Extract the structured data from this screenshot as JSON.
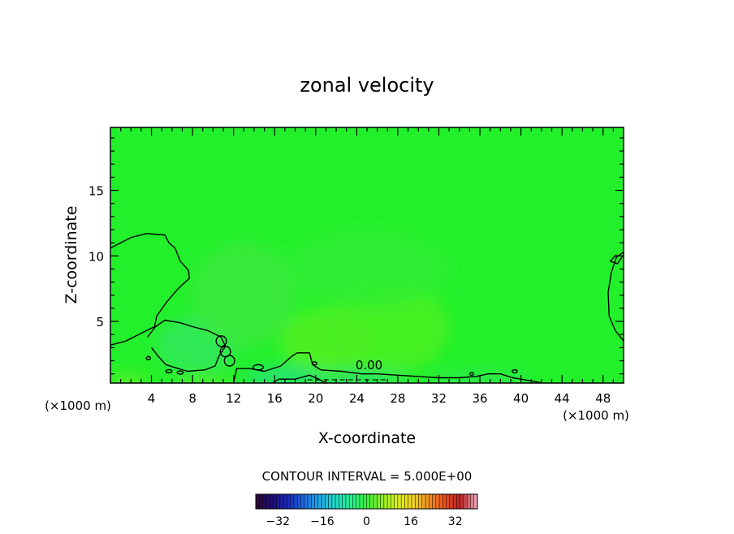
{
  "chart_data": {
    "type": "heatmap",
    "title": "zonal velocity",
    "xlabel": "X-coordinate",
    "ylabel": "Z-coordinate",
    "x_unit_label": "(×1000 m)",
    "x_ticks": [
      4,
      8,
      12,
      16,
      20,
      24,
      28,
      32,
      36,
      40,
      44,
      48
    ],
    "y_ticks": [
      5,
      10,
      15
    ],
    "xlim": [
      0,
      50
    ],
    "ylim": [
      0.3,
      19.8
    ],
    "contour_interval_text": "CONTOUR INTERVAL = 5.000E+00",
    "contour_label": "0.00",
    "colorbar": {
      "range": [
        -40,
        40
      ],
      "ticks": [
        -32,
        -16,
        0,
        16,
        32
      ],
      "tick_labels": [
        "−32",
        "−16",
        "0",
        "16",
        "32"
      ],
      "colors": [
        "#2a0a3a",
        "#1f0f78",
        "#1a2cc0",
        "#1e6be0",
        "#20a8e8",
        "#22d8c8",
        "#28f090",
        "#3af040",
        "#8ef020",
        "#d8f020",
        "#f0d020",
        "#f09020",
        "#e85020",
        "#c02020",
        "#e8a0b0"
      ]
    },
    "background_color": "#22f02a",
    "zero_contours": [
      {
        "name": "upper-left",
        "points": [
          [
            0,
            10.6
          ],
          [
            2,
            11.4
          ],
          [
            3.5,
            11.7
          ],
          [
            5.3,
            11.6
          ],
          [
            5.7,
            11
          ],
          [
            6.3,
            10.6
          ],
          [
            6.8,
            9.6
          ],
          [
            7.6,
            8.9
          ],
          [
            7.7,
            8.3
          ],
          [
            6.6,
            7.5
          ],
          [
            5.5,
            6.5
          ],
          [
            4.5,
            5.4
          ],
          [
            4.3,
            4.6
          ],
          [
            3,
            4.1
          ],
          [
            1.5,
            3.5
          ],
          [
            0,
            3.2
          ]
        ]
      },
      {
        "name": "middle-lobe",
        "points": [
          [
            3.6,
            3.8
          ],
          [
            4.4,
            4.6
          ],
          [
            5.3,
            5.1
          ],
          [
            6.8,
            4.9
          ],
          [
            8,
            4.6
          ],
          [
            9.5,
            4.3
          ],
          [
            10.8,
            3.8
          ],
          [
            11.2,
            3.1
          ],
          [
            10.6,
            2.4
          ],
          [
            10.2,
            1.6
          ],
          [
            9.2,
            1.3
          ],
          [
            7.5,
            1.2
          ],
          [
            5.4,
            1.7
          ],
          [
            4.6,
            2.4
          ],
          [
            4,
            3
          ]
        ]
      },
      {
        "name": "lower-band",
        "points": [
          [
            12,
            0.3
          ],
          [
            12.3,
            1.4
          ],
          [
            13.6,
            1.4
          ],
          [
            15,
            1.2
          ],
          [
            16.6,
            1.6
          ],
          [
            17.6,
            2.3
          ],
          [
            18.2,
            2.6
          ],
          [
            19.4,
            2.6
          ],
          [
            19.7,
            1.7
          ],
          [
            20.5,
            1.3
          ],
          [
            22.5,
            1.2
          ],
          [
            24.5,
            1.0
          ],
          [
            26,
            1.0
          ],
          [
            28,
            0.9
          ],
          [
            30,
            0.8
          ],
          [
            32,
            0.7
          ],
          [
            34,
            0.7
          ],
          [
            35.6,
            0.8
          ],
          [
            36.8,
            1.0
          ],
          [
            38,
            1.0
          ],
          [
            39.2,
            0.7
          ],
          [
            40,
            0.6
          ],
          [
            41.5,
            0.4
          ],
          [
            42,
            0.3
          ]
        ]
      },
      {
        "name": "band-inner",
        "points": [
          [
            15.8,
            0.3
          ],
          [
            16.4,
            0.6
          ],
          [
            18,
            0.6
          ],
          [
            19.4,
            0.9
          ],
          [
            20.3,
            0.6
          ],
          [
            21,
            0.3
          ]
        ]
      },
      {
        "name": "right-edge",
        "points": [
          [
            50,
            10.3
          ],
          [
            49.3,
            9.9
          ],
          [
            48.8,
            8.7
          ],
          [
            48.5,
            7.2
          ],
          [
            48.6,
            5.4
          ],
          [
            49.2,
            4.3
          ],
          [
            50,
            3.5
          ]
        ]
      },
      {
        "name": "right-notch",
        "points": [
          [
            50,
            10.1
          ],
          [
            49.4,
            9.4
          ],
          [
            48.7,
            9.6
          ],
          [
            49.3,
            10.1
          ]
        ]
      }
    ],
    "small_closed_contours": [
      {
        "cx": 10.8,
        "cy": 3.5,
        "rx": 0.5,
        "ry": 0.4
      },
      {
        "cx": 11.2,
        "cy": 2.7,
        "rx": 0.5,
        "ry": 0.4
      },
      {
        "cx": 11.6,
        "cy": 2.0,
        "rx": 0.5,
        "ry": 0.4
      },
      {
        "cx": 14.4,
        "cy": 1.5,
        "rx": 0.5,
        "ry": 0.2
      },
      {
        "cx": 19.9,
        "cy": 1.8,
        "rx": 0.2,
        "ry": 0.12
      },
      {
        "cx": 35.2,
        "cy": 1.0,
        "rx": 0.2,
        "ry": 0.1
      },
      {
        "cx": 39.4,
        "cy": 1.2,
        "rx": 0.25,
        "ry": 0.12
      },
      {
        "cx": 3.7,
        "cy": 2.2,
        "rx": 0.2,
        "ry": 0.12
      },
      {
        "cx": 5.7,
        "cy": 1.2,
        "rx": 0.3,
        "ry": 0.12
      },
      {
        "cx": 6.8,
        "cy": 1.1,
        "rx": 0.3,
        "ry": 0.12
      }
    ],
    "shading_patches": [
      {
        "cx": 8.5,
        "cy": 3.2,
        "rx": 4,
        "ry": 2.2,
        "color": "#33e860"
      },
      {
        "cx": 21,
        "cy": 3.5,
        "rx": 4.5,
        "ry": 2.5,
        "color": "#55f020"
      },
      {
        "cx": 27,
        "cy": 4.5,
        "rx": 6,
        "ry": 3.5,
        "color": "#4cf022"
      },
      {
        "cx": 13,
        "cy": 7,
        "rx": 5,
        "ry": 4,
        "color": "#3de840"
      },
      {
        "cx": 17,
        "cy": 0.8,
        "rx": 4,
        "ry": 0.7,
        "color": "#28e088"
      },
      {
        "cx": 24,
        "cy": 0.7,
        "rx": 5,
        "ry": 0.6,
        "color": "#2ee070"
      },
      {
        "cx": 36,
        "cy": 0.6,
        "rx": 5,
        "ry": 0.5,
        "color": "#36e860"
      },
      {
        "cx": 25,
        "cy": 9,
        "rx": 8,
        "ry": 3,
        "color": "#30ee35"
      },
      {
        "cx": 1.8,
        "cy": 0.45,
        "rx": 2,
        "ry": 0.3,
        "color": "#9cf020"
      },
      {
        "cx": 9,
        "cy": 0.4,
        "rx": 3,
        "ry": 0.25,
        "color": "#7df020"
      }
    ]
  }
}
